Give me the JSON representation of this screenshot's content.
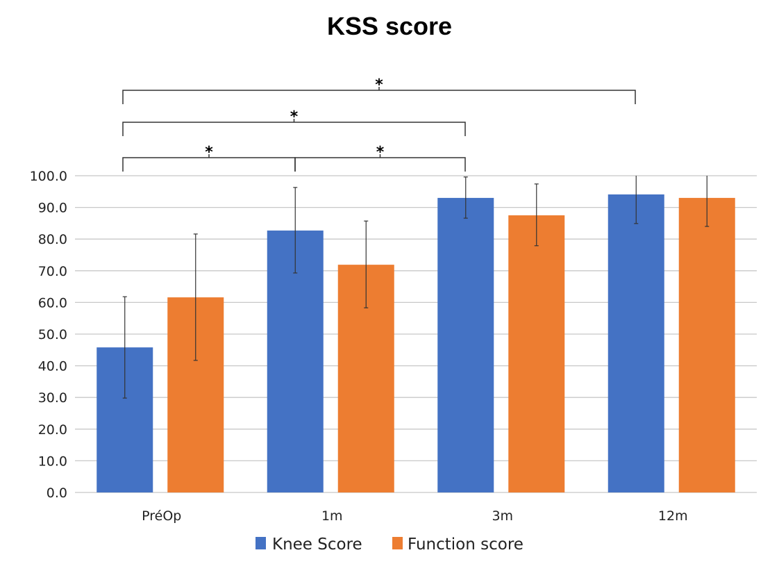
{
  "chart_data": {
    "type": "bar",
    "title": "KSS score",
    "xlabel": "",
    "ylabel": "",
    "ylim": [
      0,
      100
    ],
    "yticks": [
      "0.0",
      "10.0",
      "20.0",
      "30.0",
      "40.0",
      "50.0",
      "60.0",
      "70.0",
      "80.0",
      "90.0",
      "100.0"
    ],
    "grid": true,
    "legend_position": "bottom",
    "categories": [
      "PréOp",
      "1m",
      "3m",
      "12m"
    ],
    "series": [
      {
        "name": "Knee Score",
        "color": "#4472C4",
        "values": [
          45.8,
          82.7,
          93.0,
          94.1
        ],
        "error_low": [
          29.8,
          69.3,
          86.6,
          84.9
        ],
        "error_high": [
          61.8,
          96.3,
          99.6,
          100
        ]
      },
      {
        "name": "Function score",
        "color": "#ED7D31",
        "values": [
          61.6,
          71.9,
          87.5,
          93.0
        ],
        "error_low": [
          41.7,
          58.3,
          77.9,
          84.0
        ],
        "error_high": [
          81.6,
          85.7,
          97.4,
          100
        ]
      }
    ],
    "significance": [
      {
        "from": "PréOp",
        "to": "12m",
        "label": "*",
        "level": 3
      },
      {
        "from": "PréOp",
        "to": "3m",
        "label": "*",
        "level": 2
      },
      {
        "from": "PréOp",
        "to": "1m",
        "label": "*",
        "level": 1
      },
      {
        "from": "1m",
        "to": "3m",
        "label": "*",
        "level": 1
      }
    ]
  }
}
